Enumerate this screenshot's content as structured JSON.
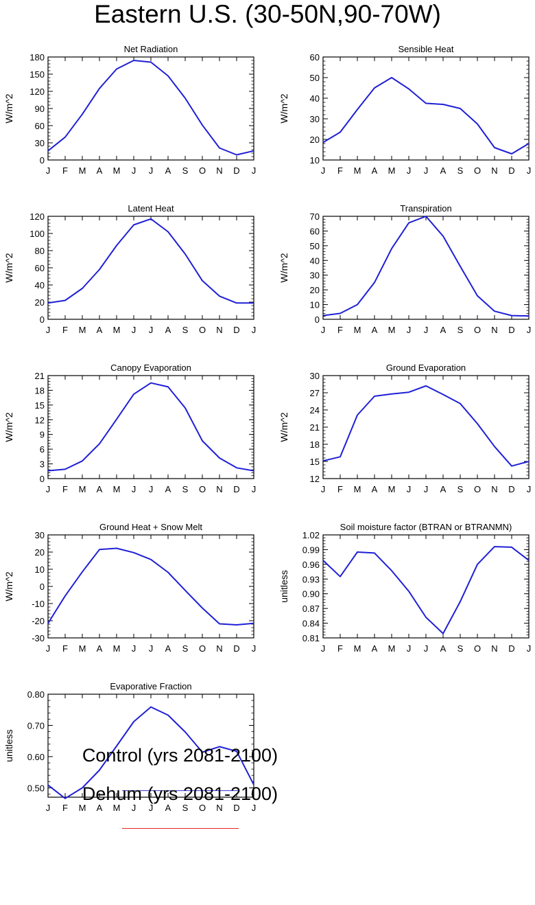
{
  "title": "Eastern U.S. (30-50N,90-70W)",
  "months": [
    "J",
    "F",
    "M",
    "A",
    "M",
    "J",
    "J",
    "A",
    "S",
    "O",
    "N",
    "D",
    "J"
  ],
  "line_color": "#1f1fd6",
  "chart_data": [
    {
      "type": "line",
      "title": "Net Radiation",
      "ylabel": "W/m^2",
      "ylim": [
        0,
        180
      ],
      "yticks": [
        0,
        30,
        60,
        90,
        120,
        150,
        180
      ],
      "ytick_labels": [
        "0",
        "30",
        "60",
        "90",
        "120",
        "150",
        "180"
      ],
      "categories": [
        "J",
        "F",
        "M",
        "A",
        "M",
        "J",
        "J",
        "A",
        "S",
        "O",
        "N",
        "D",
        "J"
      ],
      "series": [
        {
          "values": [
            16,
            40,
            80,
            125,
            159,
            174,
            171,
            147,
            108,
            61,
            21,
            9,
            16
          ]
        }
      ]
    },
    {
      "type": "line",
      "title": "Sensible Heat",
      "ylabel": "W/m^2",
      "ylim": [
        10,
        60
      ],
      "yticks": [
        10,
        20,
        30,
        40,
        50,
        60
      ],
      "ytick_labels": [
        "10",
        "20",
        "30",
        "40",
        "50",
        "60"
      ],
      "categories": [
        "J",
        "F",
        "M",
        "A",
        "M",
        "J",
        "J",
        "A",
        "S",
        "O",
        "N",
        "D",
        "J"
      ],
      "series": [
        {
          "values": [
            18.5,
            23.5,
            34.5,
            45,
            50,
            44.5,
            37.5,
            37,
            35,
            27.5,
            16,
            13,
            18
          ]
        }
      ]
    },
    {
      "type": "line",
      "title": "Latent Heat",
      "ylabel": "W/m^2",
      "ylim": [
        0,
        120
      ],
      "yticks": [
        0,
        20,
        40,
        60,
        80,
        100,
        120
      ],
      "ytick_labels": [
        "0",
        "20",
        "40",
        "60",
        "80",
        "100",
        "120"
      ],
      "categories": [
        "J",
        "F",
        "M",
        "A",
        "M",
        "J",
        "J",
        "A",
        "S",
        "O",
        "N",
        "D",
        "J"
      ],
      "series": [
        {
          "values": [
            19,
            22,
            36,
            58,
            86,
            110,
            117,
            102,
            76,
            45,
            27,
            19,
            19
          ]
        }
      ]
    },
    {
      "type": "line",
      "title": "Transpiration",
      "ylabel": "W/m^2",
      "ylim": [
        0,
        70
      ],
      "yticks": [
        0,
        10,
        20,
        30,
        40,
        50,
        60,
        70
      ],
      "ytick_labels": [
        "0",
        "10",
        "20",
        "30",
        "40",
        "50",
        "60",
        "70"
      ],
      "categories": [
        "J",
        "F",
        "M",
        "A",
        "M",
        "J",
        "J",
        "A",
        "S",
        "O",
        "N",
        "D",
        "J"
      ],
      "series": [
        {
          "values": [
            2.5,
            4,
            10,
            25,
            48,
            65.5,
            70,
            56.5,
            36,
            16,
            5.5,
            2.5,
            2.3
          ]
        }
      ]
    },
    {
      "type": "line",
      "title": "Canopy Evaporation",
      "ylabel": "W/m^2",
      "ylim": [
        0,
        21
      ],
      "yticks": [
        0,
        3,
        6,
        9,
        12,
        15,
        18,
        21
      ],
      "ytick_labels": [
        "0",
        "3",
        "6",
        "9",
        "12",
        "15",
        "18",
        "21"
      ],
      "categories": [
        "J",
        "F",
        "M",
        "A",
        "M",
        "J",
        "J",
        "A",
        "S",
        "O",
        "N",
        "D",
        "J"
      ],
      "series": [
        {
          "values": [
            1.6,
            1.9,
            3.6,
            7.1,
            12.1,
            17.2,
            19.5,
            18.7,
            14.4,
            7.7,
            4.2,
            2.2,
            1.6
          ]
        }
      ]
    },
    {
      "type": "line",
      "title": "Ground Evaporation",
      "ylabel": "W/m^2",
      "ylim": [
        12,
        30
      ],
      "yticks": [
        12,
        15,
        18,
        21,
        24,
        27,
        30
      ],
      "ytick_labels": [
        "12",
        "15",
        "18",
        "21",
        "24",
        "27",
        "30"
      ],
      "categories": [
        "J",
        "F",
        "M",
        "A",
        "M",
        "J",
        "J",
        "A",
        "S",
        "O",
        "N",
        "D",
        "J"
      ],
      "series": [
        {
          "values": [
            15.1,
            15.8,
            23.1,
            26.4,
            26.8,
            27.1,
            28.2,
            26.7,
            25.1,
            21.6,
            17.6,
            14.2,
            15.0
          ]
        }
      ]
    },
    {
      "type": "line",
      "title": "Ground Heat + Snow Melt",
      "ylabel": "W/m^2",
      "ylim": [
        -30,
        30
      ],
      "yticks": [
        -30,
        -20,
        -10,
        0,
        10,
        20,
        30
      ],
      "ytick_labels": [
        "-30",
        "-20",
        "-10",
        "0",
        "10",
        "20",
        "30"
      ],
      "categories": [
        "J",
        "F",
        "M",
        "A",
        "M",
        "J",
        "J",
        "A",
        "S",
        "O",
        "N",
        "D",
        "J"
      ],
      "series": [
        {
          "values": [
            -21.5,
            -5.5,
            8.5,
            21.5,
            22.2,
            19.7,
            15.7,
            8.2,
            -2.3,
            -12.6,
            -21.8,
            -22.4,
            -21.5
          ]
        }
      ]
    },
    {
      "type": "line",
      "title": "Soil moisture factor (BTRAN or BTRANMN)",
      "ylabel": "unitless",
      "ylim": [
        0.81,
        1.02
      ],
      "yticks": [
        0.81,
        0.84,
        0.87,
        0.9,
        0.93,
        0.96,
        0.99,
        1.02
      ],
      "ytick_labels": [
        "0.81",
        "0.84",
        "0.87",
        "0.90",
        "0.93",
        "0.96",
        "0.99",
        "1.02"
      ],
      "categories": [
        "J",
        "F",
        "M",
        "A",
        "M",
        "J",
        "J",
        "A",
        "S",
        "O",
        "N",
        "D",
        "J"
      ],
      "series": [
        {
          "values": [
            0.968,
            0.935,
            0.985,
            0.983,
            0.947,
            0.905,
            0.852,
            0.819,
            0.884,
            0.96,
            0.996,
            0.995,
            0.968
          ]
        }
      ]
    },
    {
      "type": "line",
      "title": "Evaporative Fraction",
      "ylabel": "unitless",
      "ylim": [
        0.47,
        0.8
      ],
      "yticks": [
        0.5,
        0.6,
        0.7,
        0.8
      ],
      "ytick_labels": [
        "0.50",
        "0.60",
        "0.70",
        "0.80"
      ],
      "categories": [
        "J",
        "F",
        "M",
        "A",
        "M",
        "J",
        "J",
        "A",
        "S",
        "O",
        "N",
        "D",
        "J"
      ],
      "series": [
        {
          "values": [
            0.509,
            0.466,
            0.5,
            0.557,
            0.634,
            0.712,
            0.759,
            0.733,
            0.679,
            0.614,
            0.632,
            0.617,
            0.51
          ]
        }
      ]
    }
  ],
  "legend": {
    "items": [
      {
        "label": "Control (yrs 2081-2100)",
        "color": "#3b3bd9"
      },
      {
        "label": "Dehum (yrs 2081-2100)",
        "color": "#e8241c"
      }
    ]
  }
}
